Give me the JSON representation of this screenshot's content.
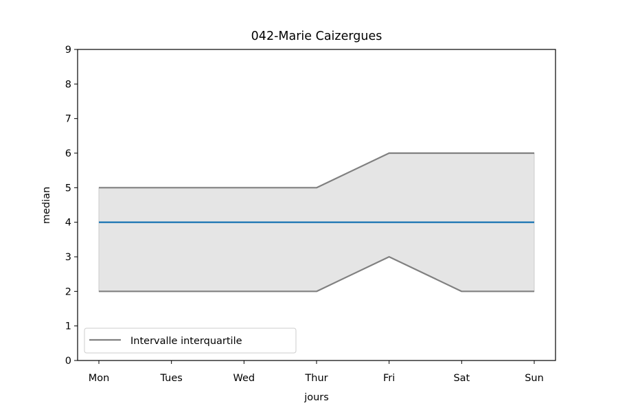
{
  "chart_data": {
    "type": "line",
    "title": "042-Marie Caizergues",
    "xlabel": "jours",
    "ylabel": "median",
    "categories": [
      "Mon",
      "Tues",
      "Wed",
      "Thur",
      "Fri",
      "Sat",
      "Sun"
    ],
    "ylim": [
      0,
      9
    ],
    "yticks": [
      "0",
      "1",
      "2",
      "3",
      "4",
      "5",
      "6",
      "7",
      "8",
      "9"
    ],
    "series": [
      {
        "key": "median",
        "values": [
          4,
          4,
          4,
          4,
          4,
          4,
          4
        ],
        "color": "#1f77b4"
      },
      {
        "key": "q1",
        "values": [
          2,
          2,
          2,
          2,
          3,
          2,
          2
        ],
        "color": "#808080"
      },
      {
        "key": "q3",
        "values": [
          5,
          5,
          5,
          5,
          6,
          6,
          6
        ],
        "color": "#808080"
      }
    ],
    "band_color": "#e5e5e5",
    "legend": {
      "position": "lower-left",
      "entries": [
        {
          "name": "Intervalle interquartile",
          "color": "#808080"
        }
      ]
    },
    "grid": false
  }
}
